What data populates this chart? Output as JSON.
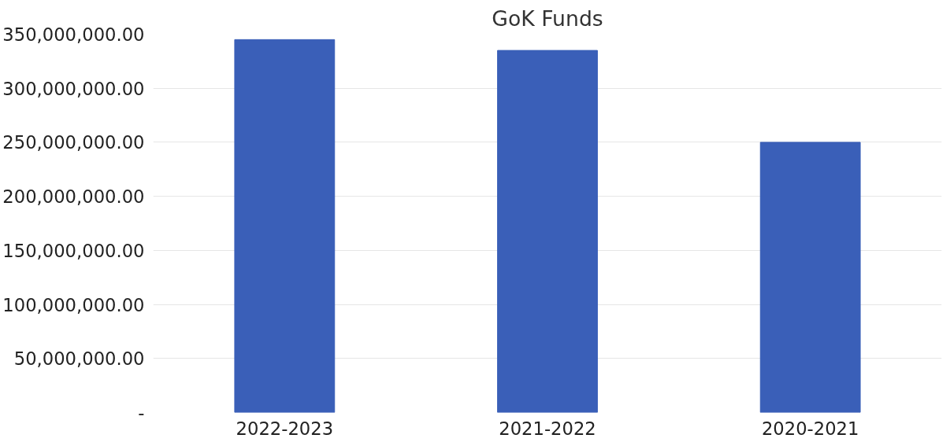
{
  "chart_data": {
    "type": "bar",
    "title": "GoK Funds",
    "categories": [
      "2022-2023",
      "2021-2022",
      "2020-2021"
    ],
    "values": [
      345000000,
      335000000,
      250000000
    ],
    "color": "#3a5fb8",
    "ylim": [
      0,
      350000000
    ],
    "yticks": [
      {
        "value": 0,
        "label": "-"
      },
      {
        "value": 50000000,
        "label": "50,000,000.00"
      },
      {
        "value": 100000000,
        "label": "100,000,000.00"
      },
      {
        "value": 150000000,
        "label": "150,000,000.00"
      },
      {
        "value": 200000000,
        "label": "200,000,000.00"
      },
      {
        "value": 250000000,
        "label": "250,000,000.00"
      },
      {
        "value": 300000000,
        "label": "300,000,000.00"
      },
      {
        "value": 350000000,
        "label": "350,000,000.00"
      }
    ],
    "grid": "y"
  }
}
